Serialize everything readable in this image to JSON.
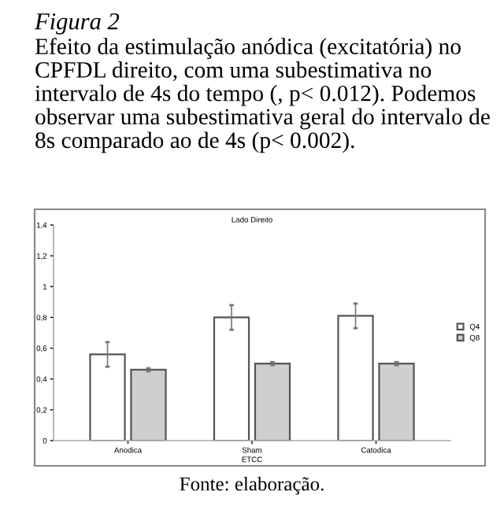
{
  "chart_data": {
    "type": "bar",
    "title": "Lado Direito",
    "xlabel": "ETCC",
    "categories": [
      "Anodica",
      "Sham",
      "Catodica"
    ],
    "series": [
      {
        "name": "Q4",
        "color": "#ffffff",
        "values": [
          0.56,
          0.8,
          0.81
        ],
        "errors": [
          0.08,
          0.08,
          0.08
        ]
      },
      {
        "name": "Q8",
        "color": "#d0cece",
        "values": [
          0.46,
          0.5,
          0.5
        ],
        "errors": [
          0.01,
          0.01,
          0.01
        ]
      }
    ],
    "ylim": [
      0,
      1.4
    ],
    "yticks": [
      0,
      {
        "value": 0.2,
        "label": "0,2"
      },
      {
        "value": 0.4,
        "label": "0,4"
      },
      {
        "value": 0.6,
        "label": "0,6"
      },
      {
        "value": 0.8,
        "label": "0,8"
      },
      1,
      {
        "value": 1.2,
        "label": "1,2"
      },
      {
        "value": 1.4,
        "label": "1,4"
      }
    ],
    "grid": false,
    "legend": "right",
    "annotations": [
      "Figura 2",
      "Efeito da estimulação anódica (excitatória) no CPFDL direito, com uma subestimativa no intervalo de 4s do tempo (, p< 0.012). Podemos observar uma subestimativa geral do intervalo de 8s comparado ao de 4s (p< 0.002).",
      "Fonte: elaboração."
    ]
  }
}
